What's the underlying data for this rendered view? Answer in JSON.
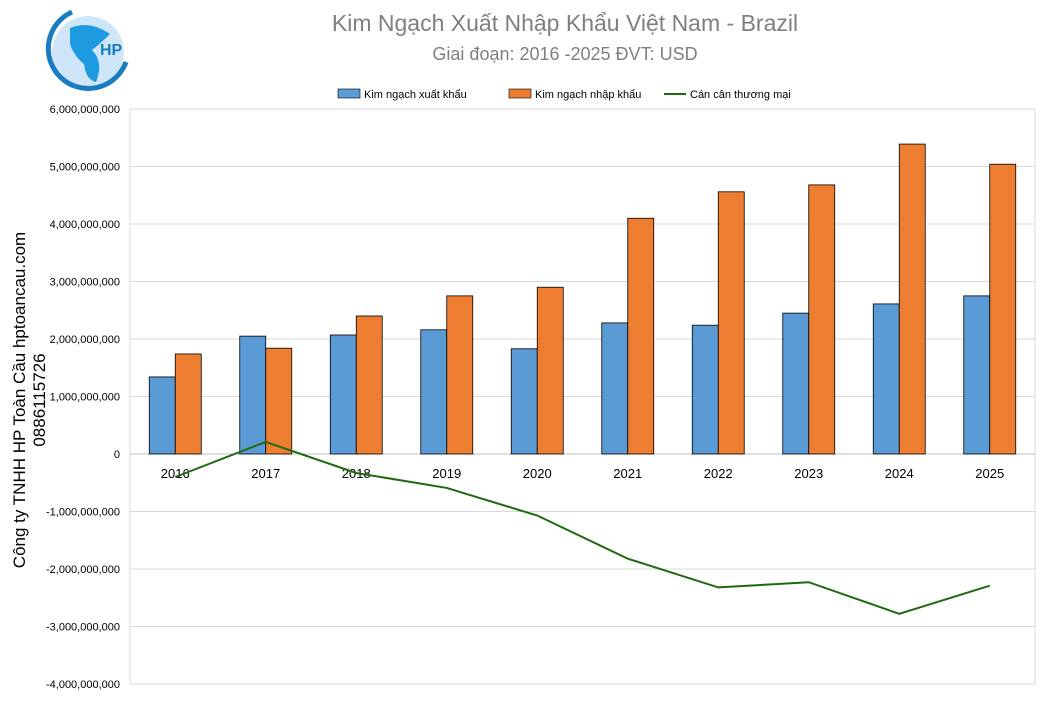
{
  "logo": {
    "text": "HP"
  },
  "chart_data": {
    "type": "bar",
    "title": "Kim Ngạch Xuất Nhập Khẩu Việt Nam - Brazil",
    "subtitle": "Giai đoạn: 2016 -2025  ĐVT: USD",
    "ylabel": "Công ty TNHH HP Toàn Cầu hptoancau.com 0886115726",
    "xlabel": "",
    "ylim": [
      -4000000000,
      6000000000
    ],
    "yticks": [
      "6,000,000,000",
      "5,000,000,000",
      "4,000,000,000",
      "3,000,000,000",
      "2,000,000,000",
      "1,000,000,000",
      "0",
      "-1,000,000,000",
      "-2,000,000,000",
      "-3,000,000,000",
      "-4,000,000,000"
    ],
    "grid": true,
    "legend_position": "top",
    "categories": [
      "2016",
      "2017",
      "2018",
      "2019",
      "2020",
      "2021",
      "2022",
      "2023",
      "2024",
      "2025"
    ],
    "series": [
      {
        "name": "Kim ngạch xuất khẩu",
        "type": "bar",
        "color": "#5b9bd5",
        "values": [
          1340000000,
          2050000000,
          2070000000,
          2160000000,
          1830000000,
          2280000000,
          2240000000,
          2450000000,
          2610000000,
          2750000000
        ]
      },
      {
        "name": "Kim ngạch nhập khẩu",
        "type": "bar",
        "color": "#ed7d31",
        "values": [
          1740000000,
          1840000000,
          2400000000,
          2750000000,
          2900000000,
          4100000000,
          4560000000,
          4680000000,
          5390000000,
          5040000000
        ]
      },
      {
        "name": "Cán cân thương mại",
        "type": "line",
        "color": "#1e6b0f",
        "values": [
          -400000000,
          210000000,
          -330000000,
          -590000000,
          -1070000000,
          -1820000000,
          -2320000000,
          -2230000000,
          -2780000000,
          -2290000000
        ]
      }
    ]
  }
}
